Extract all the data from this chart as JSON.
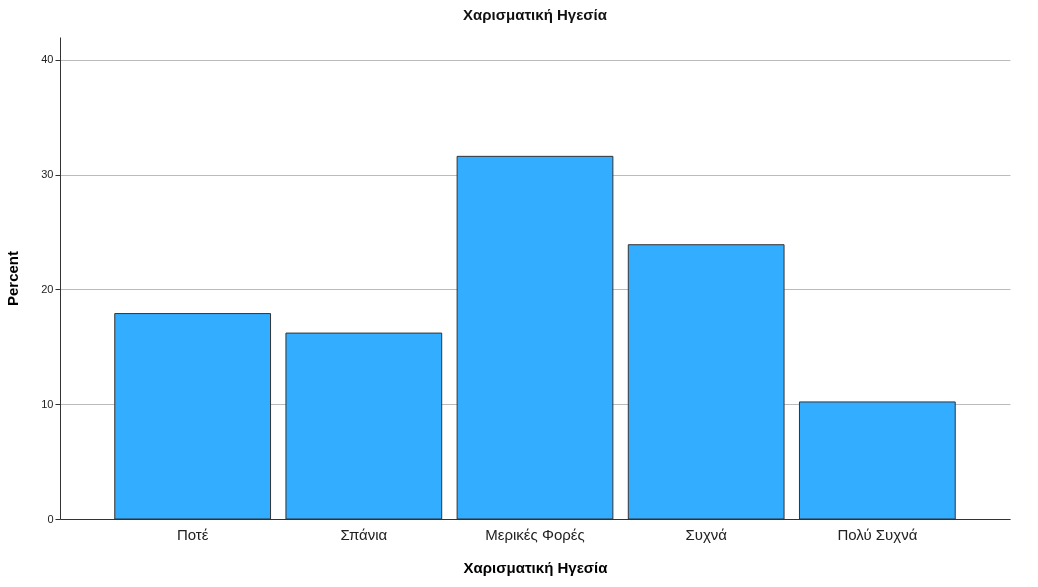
{
  "chart_data": {
    "type": "bar",
    "title": "Χαρισματική Ηγεσία",
    "xlabel": "Χαρισματική Ηγεσία",
    "ylabel": "Percent",
    "categories": [
      "Ποτέ",
      "Σπάνια",
      "Μερικές Φορές",
      "Συχνά",
      "Πολύ Συχνά"
    ],
    "values": [
      17.9,
      16.2,
      31.6,
      23.9,
      10.2
    ],
    "color": "#33adff",
    "ylim": [
      0,
      42
    ],
    "yticks": [
      0,
      10,
      20,
      30,
      40
    ],
    "grid": "y"
  }
}
